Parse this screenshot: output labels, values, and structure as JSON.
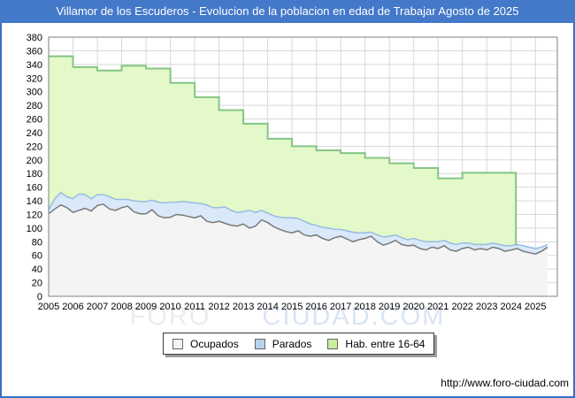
{
  "window": {
    "title": "Villamor de los Escuderos - Evolucion de la poblacion en edad de Trabajar Agosto de 2025"
  },
  "watermark": {
    "part1": "FORO",
    "part2": "CIUDAD.COM"
  },
  "footer": {
    "url": "http://www.foro-ciudad.com"
  },
  "colors": {
    "frame_border": "#3b6fc5",
    "title_bg": "#4478c9",
    "title_text": "#ffffff",
    "grid": "#d8d8d8",
    "plot_border": "#7f7f7f",
    "plot_bg": "#ffffff"
  },
  "legend": {
    "items": [
      {
        "label": "Ocupados",
        "fill": "#f4f4f4",
        "border": "#666666"
      },
      {
        "label": "Parados",
        "fill": "#b9d3ee",
        "border": "#666666"
      },
      {
        "label": "Hab. entre 16-64",
        "fill": "#c9ee9e",
        "border": "#666666"
      }
    ]
  },
  "chart_data": {
    "type": "area",
    "title": "Villamor de los Escuderos - Evolucion de la poblacion en edad de Trabajar Agosto de 2025",
    "xlabel": "",
    "ylabel": "",
    "ylim": [
      0,
      380
    ],
    "y_tick_step": 20,
    "x_ticks": [
      2005,
      2006,
      2007,
      2008,
      2009,
      2010,
      2011,
      2012,
      2013,
      2014,
      2015,
      2016,
      2017,
      2018,
      2019,
      2020,
      2021,
      2022,
      2023,
      2024,
      2025
    ],
    "x_min": 2005,
    "x_max": 2025.9,
    "grid": true,
    "legend_position": "bottom",
    "stacking_note": "Ocupados is the bottom area; Parados values are counts stacked on top of Ocupados; Hab. entre 16-64 is the total working-age population drawn as annual steps; its data ends abruptly in early 2024.",
    "series": [
      {
        "name": "Hab. entre 16-64",
        "render": "annual-steps",
        "years": [
          2005,
          2006,
          2007,
          2008,
          2009,
          2010,
          2011,
          2012,
          2013,
          2014,
          2015,
          2016,
          2017,
          2018,
          2019,
          2020,
          2021,
          2022,
          2023,
          2024
        ],
        "values": [
          352,
          336,
          331,
          338,
          334,
          313,
          292,
          273,
          253,
          231,
          220,
          214,
          210,
          203,
          195,
          188,
          173,
          181,
          181,
          181
        ],
        "ends_at_x": 2024.2,
        "fill": "#e4f9c9",
        "stroke": "#85c585"
      },
      {
        "name": "Parados",
        "render": "stacked-band",
        "x_start": 2005,
        "x_step": 0.25,
        "values": [
          6,
          15,
          18,
          16,
          20,
          24,
          20,
          18,
          16,
          14,
          18,
          16,
          12,
          10,
          16,
          18,
          18,
          14,
          20,
          22,
          22,
          18,
          20,
          21,
          22,
          18,
          24,
          22,
          20,
          24,
          22,
          20,
          18,
          26,
          20,
          14,
          14,
          16,
          18,
          20,
          22,
          18,
          20,
          18,
          14,
          16,
          18,
          12,
          10,
          12,
          14,
          10,
          8,
          6,
          10,
          12,
          10,
          8,
          10,
          9,
          10,
          12,
          12,
          8,
          10,
          8,
          10,
          10,
          8,
          6,
          8,
          6,
          8,
          6,
          6,
          8,
          6,
          6,
          8,
          8,
          8,
          6,
          4
        ],
        "fill": "#d9e9f9",
        "stroke": "#97bbe2"
      },
      {
        "name": "Ocupados",
        "render": "base-area",
        "x_start": 2005,
        "x_step": 0.25,
        "values": [
          121,
          128,
          134,
          130,
          123,
          126,
          129,
          125,
          133,
          135,
          128,
          126,
          130,
          132,
          124,
          121,
          121,
          127,
          118,
          115,
          116,
          120,
          119,
          117,
          115,
          118,
          110,
          108,
          110,
          107,
          104,
          103,
          106,
          100,
          103,
          112,
          108,
          102,
          98,
          95,
          93,
          96,
          90,
          88,
          90,
          85,
          82,
          86,
          88,
          84,
          80,
          83,
          85,
          88,
          80,
          75,
          78,
          82,
          76,
          74,
          75,
          70,
          68,
          72,
          70,
          74,
          68,
          66,
          70,
          72,
          68,
          70,
          68,
          72,
          70,
          66,
          68,
          70,
          66,
          64,
          62,
          66,
          72
        ],
        "fill": "#f4f4f4",
        "stroke": "#787878"
      }
    ]
  }
}
